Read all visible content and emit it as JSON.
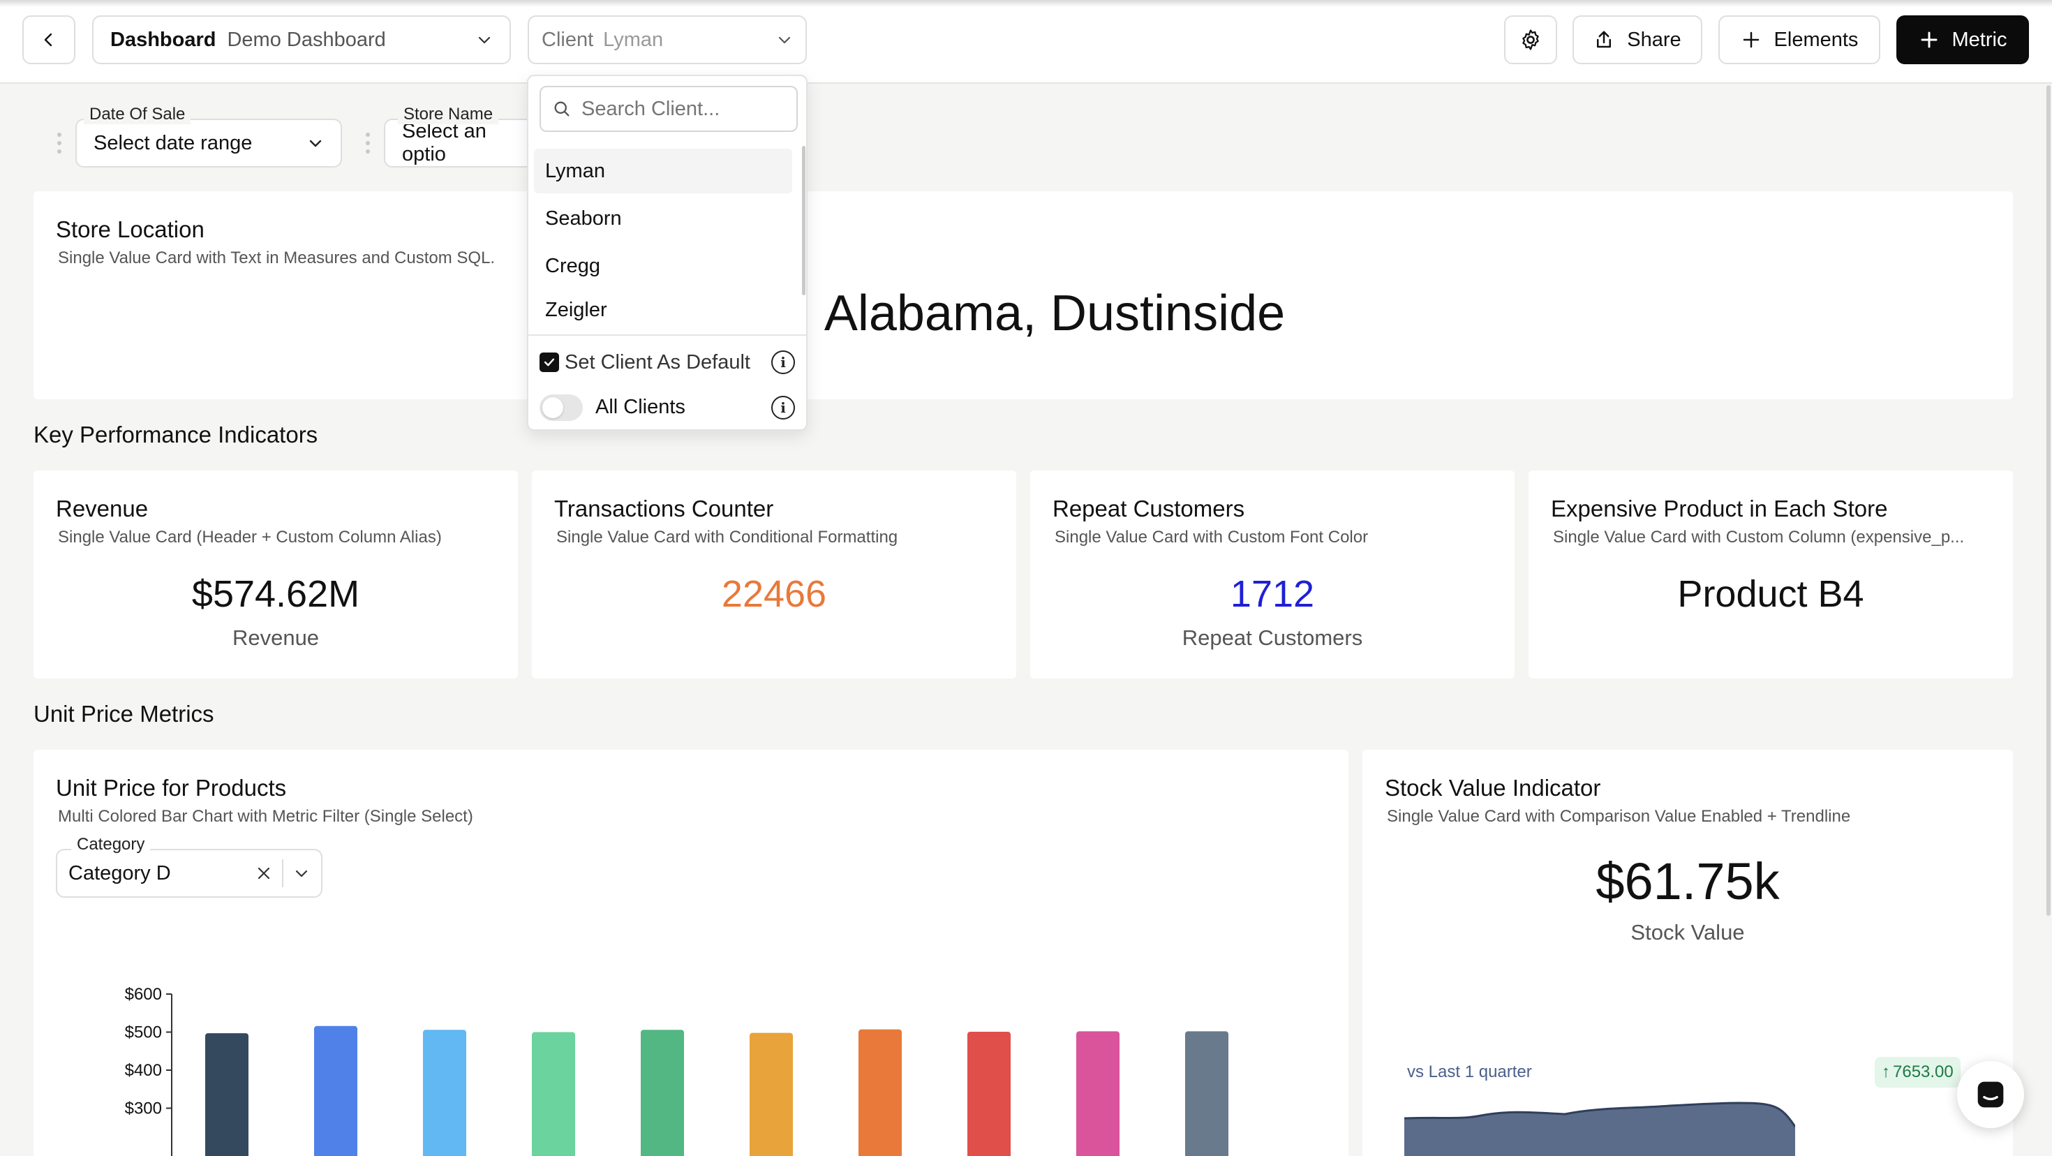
{
  "header": {
    "dashboard_label": "Dashboard",
    "dashboard_name": "Demo Dashboard",
    "client_label": "Client",
    "client_value": "Lyman",
    "share_label": "Share",
    "elements_label": "Elements",
    "metric_label": "Metric"
  },
  "filters": {
    "date_label": "Date Of Sale",
    "date_value": "Select date range",
    "store_label": "Store Name",
    "store_value": "Select an optio"
  },
  "client_dropdown": {
    "search_placeholder": "Search Client...",
    "options": [
      "Lyman",
      "Seaborn",
      "Cregg",
      "Zeigler"
    ],
    "selected": "Lyman",
    "set_default_label": "Set Client As Default",
    "set_default_checked": true,
    "all_clients_label": "All Clients",
    "all_clients_on": false
  },
  "store_location": {
    "title": "Store Location",
    "subtitle": "Single Value Card with Text in Measures and Custom SQL.",
    "value": "Alabama, Dustinside"
  },
  "kpi_section": {
    "title": "Key Performance Indicators",
    "cards": [
      {
        "title": "Revenue",
        "subtitle": "Single Value Card (Header + Custom Column Alias)",
        "value": "$574.62M",
        "label": "Revenue",
        "color": "#111111"
      },
      {
        "title": "Transactions Counter",
        "subtitle": "Single Value Card with Conditional Formatting",
        "value": "22466",
        "label": "",
        "color": "#e8793a"
      },
      {
        "title": "Repeat Customers",
        "subtitle": "Single Value Card with Custom Font Color",
        "value": "1712",
        "label": "Repeat Customers",
        "color": "#1f1fd6"
      },
      {
        "title": "Expensive Product in Each Store",
        "subtitle": "Single Value Card with Custom Column (expensive_p...",
        "value": "Product B4",
        "label": "",
        "color": "#111111"
      }
    ]
  },
  "unit_price_section": {
    "title": "Unit Price Metrics",
    "chart_card": {
      "title": "Unit Price for Products",
      "subtitle": "Multi Colored Bar Chart with Metric Filter (Single Select)",
      "filter_label": "Category",
      "filter_value": "Category D"
    },
    "stock_card": {
      "title": "Stock Value Indicator",
      "subtitle": "Single Value Card with Comparison Value Enabled + Trendline",
      "value": "$61.75k",
      "label": "Stock Value",
      "comparison_label": "vs Last 1 quarter",
      "comparison_value": "7653.00"
    }
  },
  "chart_data": {
    "type": "bar",
    "title": "Unit Price for Products",
    "xlabel": "",
    "ylabel": "",
    "yticks": [
      "$600",
      "$500",
      "$400",
      "$300"
    ],
    "ylim": [
      200,
      600
    ],
    "categories": [
      "",
      "",
      "",
      "",
      "",
      "",
      "",
      "",
      "",
      ""
    ],
    "values": [
      497,
      516,
      506,
      500,
      506,
      498,
      507,
      501,
      502,
      502
    ],
    "colors": [
      "#34495e",
      "#4f81e8",
      "#61b8f2",
      "#6bd39d",
      "#52b783",
      "#e8a33a",
      "#e8793a",
      "#e04f4a",
      "#d9549b",
      "#687a8c"
    ]
  }
}
